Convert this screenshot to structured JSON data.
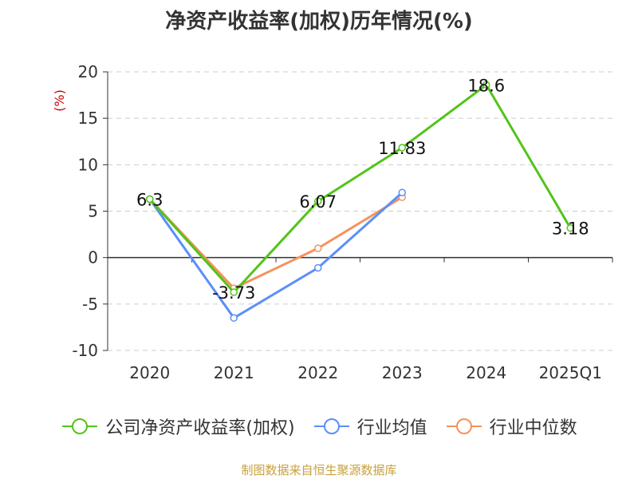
{
  "title": "净资产收益率(加权)历年情况(%)",
  "source": "制图数据来自恒生聚源数据库",
  "colors": {
    "company": "#52c41a",
    "industry_avg": "#5b8ff9",
    "industry_median": "#f6925d",
    "axis_text": "#333333",
    "unit_text": "#d00000",
    "grid": "#cccccc",
    "source": "#c8a13c"
  },
  "chart_data": {
    "type": "line",
    "title": "净资产收益率(加权)历年情况(%)",
    "ylabel": "(%)",
    "xlabel": "",
    "categories": [
      "2020",
      "2021",
      "2022",
      "2023",
      "2024",
      "2025Q1"
    ],
    "ylim": [
      -10,
      20
    ],
    "yticks": [
      20,
      15,
      10,
      5,
      0,
      -5,
      -10
    ],
    "grid": true,
    "legend_position": "bottom",
    "series": [
      {
        "name": "公司净资产收益率(加权)",
        "key": "company",
        "values": [
          6.3,
          -3.73,
          6.07,
          11.83,
          18.6,
          3.18
        ],
        "labels": [
          "6.3",
          "-3.73",
          "6.07",
          "11.83",
          "18.6",
          "3.18"
        ]
      },
      {
        "name": "行业均值",
        "key": "industry_avg",
        "values": [
          6.3,
          -6.5,
          -1.1,
          7.0,
          null,
          null
        ]
      },
      {
        "name": "行业中位数",
        "key": "industry_median",
        "values": [
          6.3,
          -3.3,
          1.0,
          6.5,
          null,
          null
        ]
      }
    ]
  }
}
